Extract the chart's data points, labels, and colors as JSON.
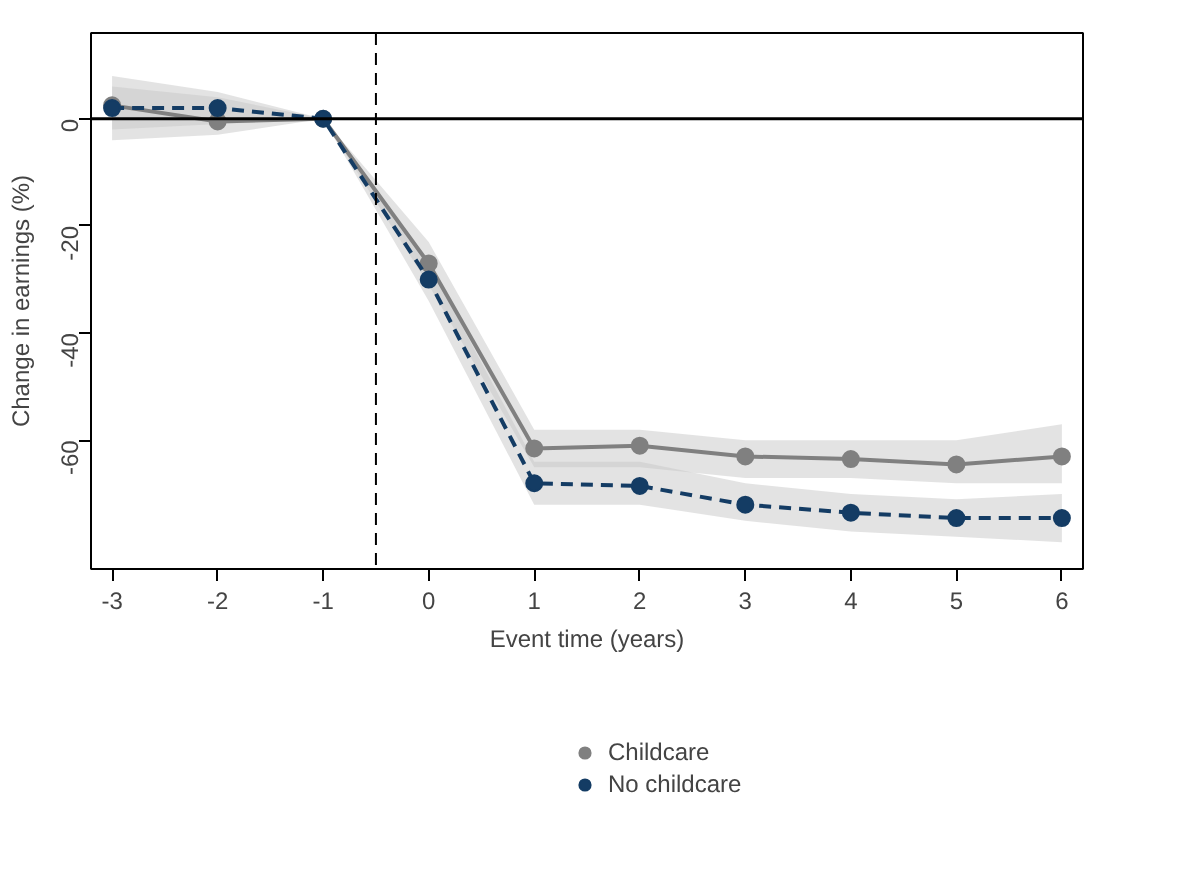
{
  "chart_data": {
    "type": "line",
    "xlabel": "Event time (years)",
    "ylabel": "Change in earnings (%)",
    "x": [
      -3,
      -2,
      -1,
      0,
      1,
      2,
      3,
      4,
      5,
      6
    ],
    "xlim": [
      -3.2,
      6.2
    ],
    "xticks": [
      -3,
      -2,
      -1,
      0,
      1,
      2,
      3,
      4,
      5,
      6
    ],
    "ylim": [
      -84,
      16
    ],
    "yticks": [
      -60,
      -40,
      -20,
      0
    ],
    "grid": false,
    "legend": "bottom",
    "marker": "circle",
    "ref_lines": [
      {
        "axis": "y",
        "value": 0,
        "color": "#000000",
        "line_style": "solid"
      },
      {
        "axis": "x",
        "value": -0.5,
        "color": "#000000",
        "line_style": "dashed"
      }
    ],
    "series": [
      {
        "name": "Childcare",
        "color": "#808080",
        "line_style": "solid",
        "values": [
          2.5,
          -0.5,
          0,
          -27,
          -61.5,
          -61,
          -63,
          -63.5,
          -64.5,
          -63
        ],
        "lower": [
          -4,
          -3,
          0,
          -31,
          -65,
          -65,
          -67,
          -67,
          -68,
          -68
        ],
        "upper": [
          8,
          5,
          0,
          -23,
          -58,
          -58,
          -60,
          -60,
          -60,
          -57
        ]
      },
      {
        "name": "No childcare",
        "color": "#143c64",
        "line_style": "dashed",
        "values": [
          2,
          2,
          0,
          -30,
          -68,
          -68.5,
          -72,
          -73.5,
          -74.5,
          -74.5
        ],
        "lower": [
          -2,
          -1,
          0,
          -34,
          -72,
          -72,
          -75,
          -77,
          -78,
          -79
        ],
        "upper": [
          6,
          4,
          0,
          -27,
          -64,
          -64,
          -68,
          -70,
          -71,
          -70
        ]
      }
    ]
  }
}
